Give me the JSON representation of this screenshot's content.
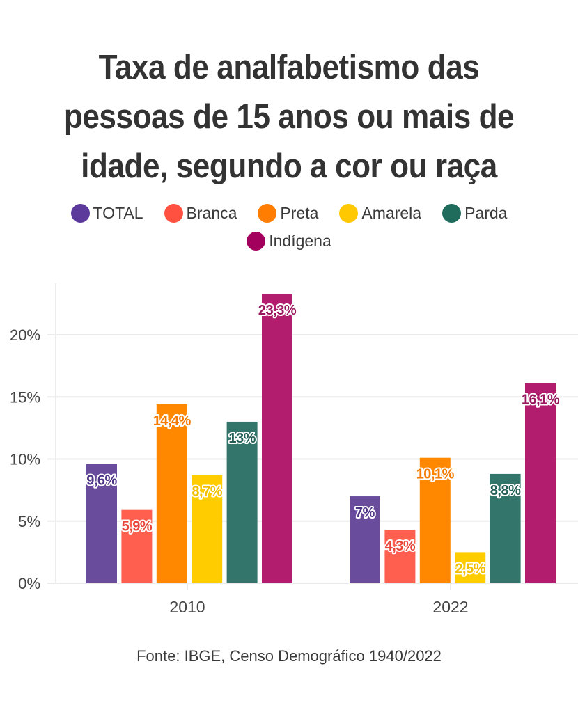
{
  "chart_data": {
    "type": "bar",
    "title_lines": [
      "Taxa de analfabetismo das",
      "pessoas de 15 anos ou mais de",
      "idade, segundo a cor ou raça"
    ],
    "categories": [
      "2010",
      "2022"
    ],
    "series": [
      {
        "name": "TOTAL",
        "color": "#6a4c9c",
        "dot_color": "#5b3a9c",
        "label_color": "#4f3585",
        "values": [
          9.6,
          7.0
        ],
        "labels": [
          "9,6%",
          "7%"
        ]
      },
      {
        "name": "Branca",
        "color": "#ff5f4f",
        "dot_color": "#ff5040",
        "label_color": "#e8473a",
        "values": [
          5.9,
          4.3
        ],
        "labels": [
          "5,9%",
          "4,3%"
        ]
      },
      {
        "name": "Preta",
        "color": "#ff8800",
        "dot_color": "#ff7d00",
        "label_color": "#f47b00",
        "values": [
          14.4,
          10.1
        ],
        "labels": [
          "14,4%",
          "10,1%"
        ]
      },
      {
        "name": "Amarela",
        "color": "#ffcc00",
        "dot_color": "#ffc800",
        "label_color": "#f0c000",
        "values": [
          8.7,
          2.5
        ],
        "labels": [
          "8,7%",
          "2,5%"
        ]
      },
      {
        "name": "Parda",
        "color": "#33756b",
        "dot_color": "#1f6b5c",
        "label_color": "#225e55",
        "values": [
          13.0,
          8.8
        ],
        "labels": [
          "13%",
          "8,8%"
        ]
      },
      {
        "name": "Indígena",
        "color": "#b31d6e",
        "dot_color": "#a3005e",
        "label_color": "#99175d",
        "values": [
          23.3,
          16.1
        ],
        "labels": [
          "23,3%",
          "16,1%"
        ]
      }
    ],
    "xlabel": "",
    "ylabel": "",
    "ylim": [
      0,
      24
    ],
    "yticks": [
      0,
      5,
      10,
      15,
      20
    ],
    "ytick_labels": [
      "0%",
      "5%",
      "10%",
      "15%",
      "20%"
    ],
    "grid": true,
    "legend_position": "top-center",
    "source": "Fonte: IBGE, Censo Demográfico 1940/2022"
  }
}
